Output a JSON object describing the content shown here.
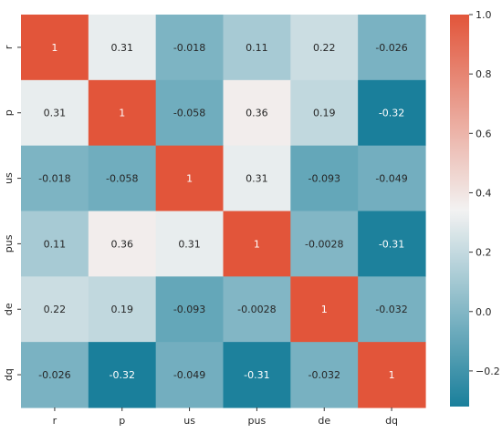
{
  "chart_data": {
    "type": "heatmap",
    "title": "",
    "xlabel": "",
    "ylabel": "",
    "x_categories": [
      "r",
      "p",
      "us",
      "pus",
      "de",
      "dq"
    ],
    "y_categories": [
      "r",
      "p",
      "us",
      "pus",
      "de",
      "dq"
    ],
    "values": [
      [
        1,
        0.31,
        -0.018,
        0.11,
        0.22,
        -0.026
      ],
      [
        0.31,
        1,
        -0.058,
        0.36,
        0.19,
        -0.32
      ],
      [
        -0.018,
        -0.058,
        1,
        0.31,
        -0.093,
        -0.049
      ],
      [
        0.11,
        0.36,
        0.31,
        1,
        -0.0028,
        -0.31
      ],
      [
        0.22,
        0.19,
        -0.093,
        -0.0028,
        1,
        -0.032
      ],
      [
        -0.026,
        -0.32,
        -0.049,
        -0.31,
        -0.032,
        1
      ]
    ],
    "cell_labels": [
      [
        "1",
        "0.31",
        "-0.018",
        "0.11",
        "0.22",
        "-0.026"
      ],
      [
        "0.31",
        "1",
        "-0.058",
        "0.36",
        "0.19",
        "-0.32"
      ],
      [
        "-0.018",
        "-0.058",
        "1",
        "0.31",
        "-0.093",
        "-0.049"
      ],
      [
        "0.11",
        "0.36",
        "0.31",
        "1",
        "-0.0028",
        "-0.31"
      ],
      [
        "0.22",
        "0.19",
        "-0.093",
        "-0.0028",
        "1",
        "-0.032"
      ],
      [
        "-0.026",
        "-0.32",
        "-0.049",
        "-0.31",
        "-0.032",
        "1"
      ]
    ],
    "colorbar": {
      "range": [
        -0.32,
        1.0
      ],
      "ticks": [
        -0.2,
        0.0,
        0.2,
        0.4,
        0.6,
        0.8,
        1.0
      ],
      "tick_labels": [
        "−0.2",
        "0.0",
        "0.2",
        "0.4",
        "0.6",
        "0.8",
        "1.0"
      ],
      "position": "right"
    },
    "colormap": {
      "low": "#1a7f9b",
      "mid": "#f2f2f2",
      "high": "#e2553a",
      "center": 0.34
    },
    "dark_text_color": "#262626",
    "light_text_color": "#ffffff",
    "grid": false,
    "legend": "none"
  }
}
